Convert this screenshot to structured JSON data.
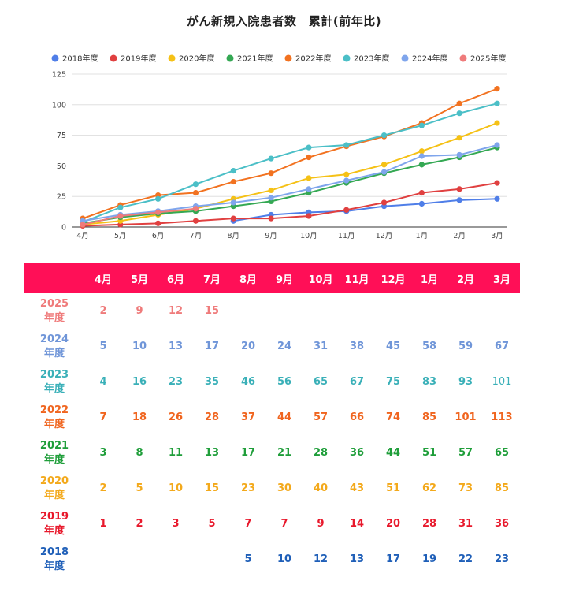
{
  "chart_data": {
    "type": "line",
    "title": "がん新規入院患者数　累計(前年比)",
    "categories": [
      "4月",
      "5月",
      "6月",
      "7月",
      "8月",
      "9月",
      "10月",
      "11月",
      "12月",
      "1月",
      "2月",
      "3月"
    ],
    "ylim": [
      0,
      125
    ],
    "yticks": [
      0,
      25,
      50,
      75,
      100,
      125
    ],
    "grid": true,
    "legend_position": "top",
    "series": [
      {
        "name": "2018年度",
        "color": "#4f7ee8",
        "table_color": "#1f5fb8",
        "table_label": [
          "2018",
          "年度"
        ],
        "values": [
          null,
          null,
          null,
          null,
          5,
          10,
          12,
          13,
          17,
          19,
          22,
          23
        ]
      },
      {
        "name": "2019年度",
        "color": "#e04040",
        "table_color": "#e8192c",
        "table_label": [
          "2019",
          "年度"
        ],
        "values": [
          1,
          2,
          3,
          5,
          7,
          7,
          9,
          14,
          20,
          28,
          31,
          36
        ]
      },
      {
        "name": "2020年度",
        "color": "#f5c116",
        "table_color": "#f3a91b",
        "table_label": [
          "2020",
          "年度"
        ],
        "values": [
          2,
          5,
          10,
          15,
          23,
          30,
          40,
          43,
          51,
          62,
          73,
          85
        ]
      },
      {
        "name": "2021年度",
        "color": "#34a853",
        "table_color": "#1f9e3a",
        "table_label": [
          "2021",
          "年度"
        ],
        "values": [
          3,
          8,
          11,
          13,
          17,
          21,
          28,
          36,
          44,
          51,
          57,
          65
        ]
      },
      {
        "name": "2022年度",
        "color": "#f27220",
        "table_color": "#f0651f",
        "table_label": [
          "2022",
          "年度"
        ],
        "values": [
          7,
          18,
          26,
          28,
          37,
          44,
          57,
          66,
          74,
          85,
          101,
          113
        ]
      },
      {
        "name": "2023年度",
        "color": "#4bbfc7",
        "table_color": "#3ab0b8",
        "table_label": [
          "2023",
          "年度"
        ],
        "values": [
          4,
          16,
          23,
          35,
          46,
          56,
          65,
          67,
          75,
          83,
          93,
          101
        ]
      },
      {
        "name": "2024年度",
        "color": "#7fa5ec",
        "table_color": "#6f95d8",
        "table_label": [
          "2024",
          "年度"
        ],
        "values": [
          5,
          10,
          13,
          17,
          20,
          24,
          31,
          38,
          45,
          58,
          59,
          67
        ]
      },
      {
        "name": "2025年度",
        "color": "#ef7b7b",
        "table_color": "#ef7b7b",
        "table_label": [
          "2025",
          "年度"
        ],
        "values": [
          2,
          9,
          12,
          15,
          null,
          null,
          null,
          null,
          null,
          null,
          null,
          null
        ]
      }
    ]
  },
  "table": {
    "row_order": [
      7,
      6,
      5,
      4,
      3,
      2,
      1,
      0
    ]
  }
}
